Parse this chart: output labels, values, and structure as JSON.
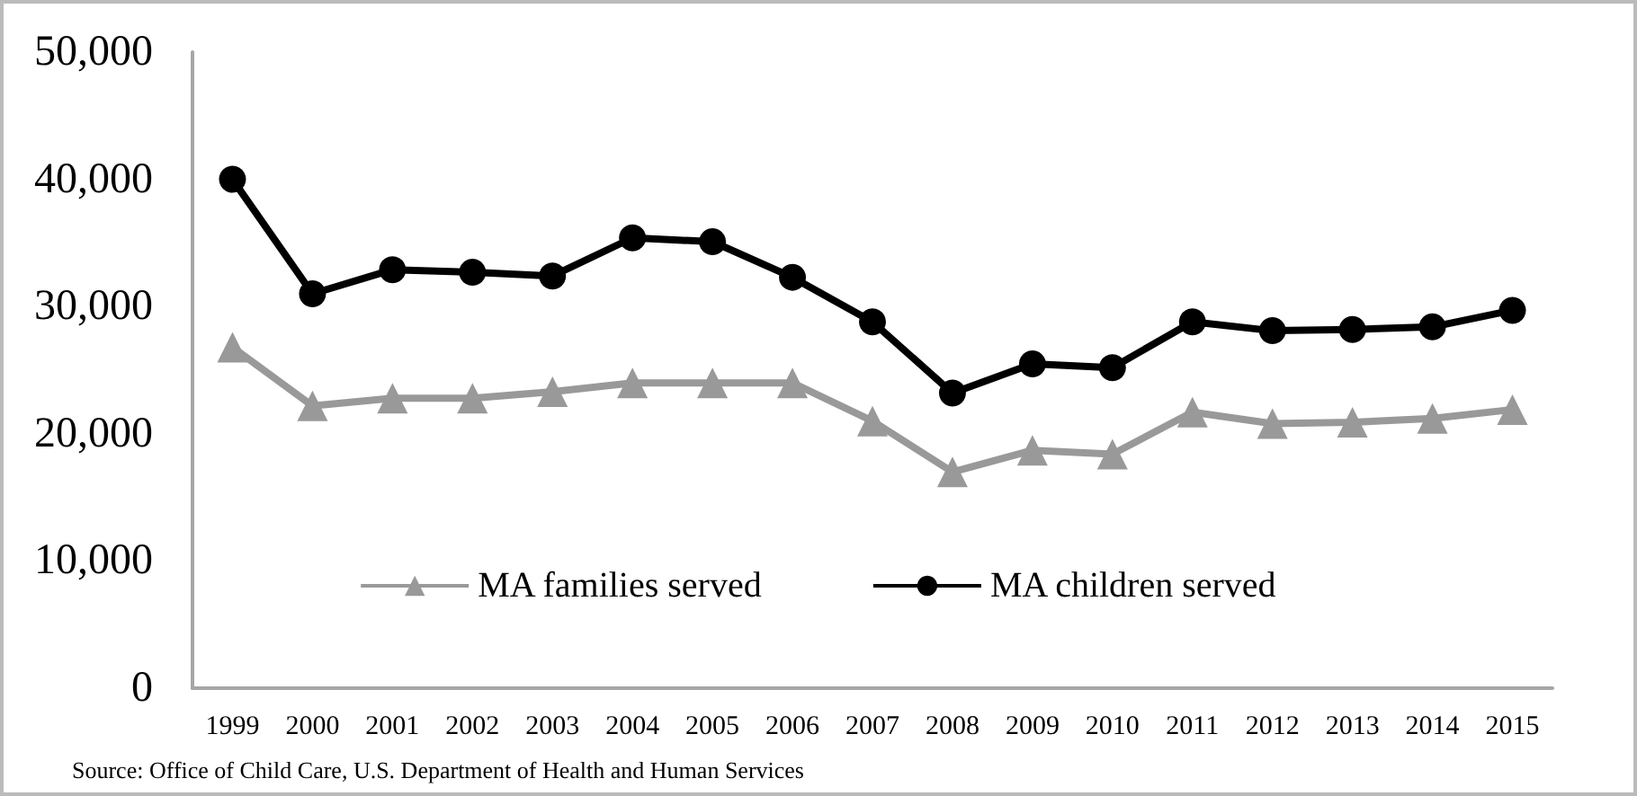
{
  "chart_data": {
    "type": "line",
    "categories": [
      "1999",
      "2000",
      "2001",
      "2002",
      "2003",
      "2004",
      "2005",
      "2006",
      "2007",
      "2008",
      "2009",
      "2010",
      "2011",
      "2012",
      "2013",
      "2014",
      "2015"
    ],
    "series": [
      {
        "name": "MA families served",
        "color": "#999999",
        "marker": "triangle",
        "values": [
          26800,
          22200,
          22800,
          22800,
          23300,
          24000,
          24000,
          24000,
          21000,
          17000,
          18700,
          18400,
          21700,
          20800,
          20900,
          21200,
          21900
        ]
      },
      {
        "name": "MA children served",
        "color": "#000000",
        "marker": "circle",
        "values": [
          40000,
          31000,
          32900,
          32700,
          32400,
          35400,
          35100,
          32300,
          28800,
          23200,
          25500,
          25200,
          28800,
          28100,
          28200,
          28400,
          29700
        ]
      }
    ],
    "ylim": [
      0,
      50000
    ],
    "yticks": [
      0,
      {
        "value": 10000,
        "label": "10,000"
      },
      {
        "value": 20000,
        "label": "20,000"
      },
      {
        "value": 30000,
        "label": "30,000"
      },
      {
        "value": 40000,
        "label": "40,000"
      },
      {
        "value": 50000,
        "label": "50,000"
      }
    ],
    "grid": false,
    "legend": "bottom",
    "line_style": "solid",
    "annotations": [
      "Source: Office of Child Care, U.S. Department of Health and Human Services"
    ]
  }
}
